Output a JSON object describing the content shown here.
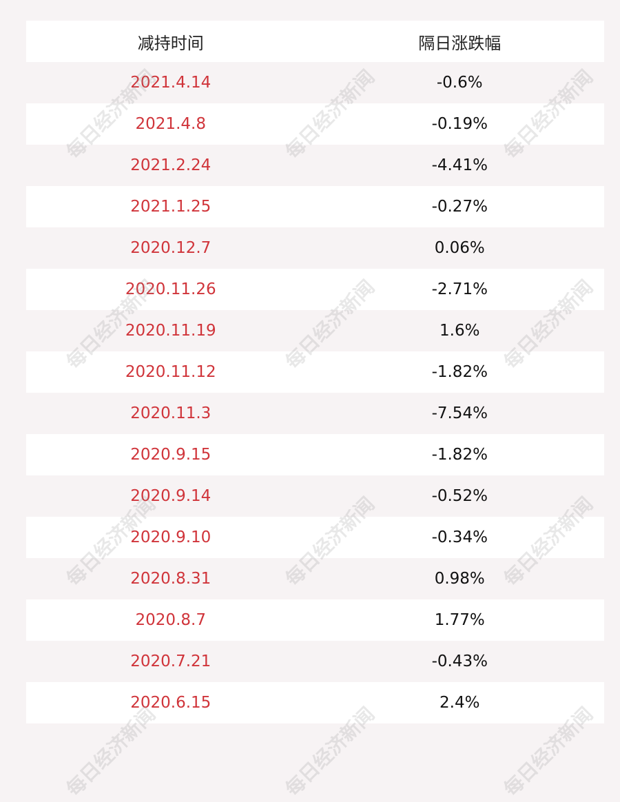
{
  "table": {
    "header": [
      "减持时间",
      "隔日涨跌幅"
    ],
    "rows": [
      [
        "2021.4.14",
        "-0.6%"
      ],
      [
        "2021.4.8",
        "-0.19%"
      ],
      [
        "2021.2.24",
        "-4.41%"
      ],
      [
        "2021.1.25",
        "-0.27%"
      ],
      [
        "2020.12.7",
        "0.06%"
      ],
      [
        "2020.11.26",
        "-2.71%"
      ],
      [
        "2020.11.19",
        "1.6%"
      ],
      [
        "2020.11.12",
        "-1.82%"
      ],
      [
        "2020.11.3",
        "-7.54%"
      ],
      [
        "2020.9.15",
        "-1.82%"
      ],
      [
        "2020.9.14",
        "-0.52%"
      ],
      [
        "2020.9.10",
        "-0.34%"
      ],
      [
        "2020.8.31",
        "0.98%"
      ],
      [
        "2020.8.7",
        "1.77%"
      ],
      [
        "2020.7.21",
        "-0.43%"
      ],
      [
        "2020.6.15",
        "2.4%"
      ]
    ]
  },
  "watermark": "每日经济新闻"
}
